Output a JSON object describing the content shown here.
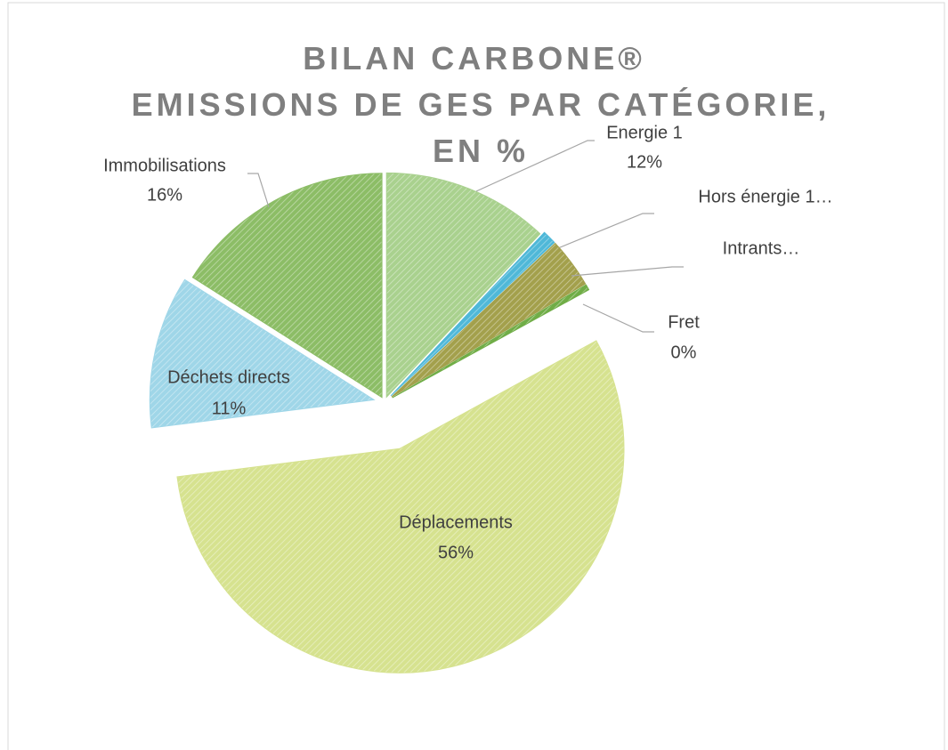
{
  "chart_data": {
    "type": "pie",
    "title": "BILAN CARBONE®",
    "subtitle": "EMISSIONS DE GES PAR CATÉGORIE, EN %",
    "categories": [
      "Energie 1",
      "Hors énergie 1…",
      "Intrants…",
      "Fret",
      "Déplacements",
      "Déchets directs",
      "Immobilisations"
    ],
    "values": [
      12,
      1,
      3.6,
      0.4,
      56,
      11,
      16
    ],
    "value_labels": [
      "12%",
      null,
      null,
      "0%",
      "56%",
      "11%",
      "16%"
    ],
    "colors": [
      "#a9d18e",
      "#4fb8d8",
      "#a3a04c",
      "#70ad47",
      "#d6e28f",
      "#9fd6e8",
      "#8cbd66"
    ]
  }
}
